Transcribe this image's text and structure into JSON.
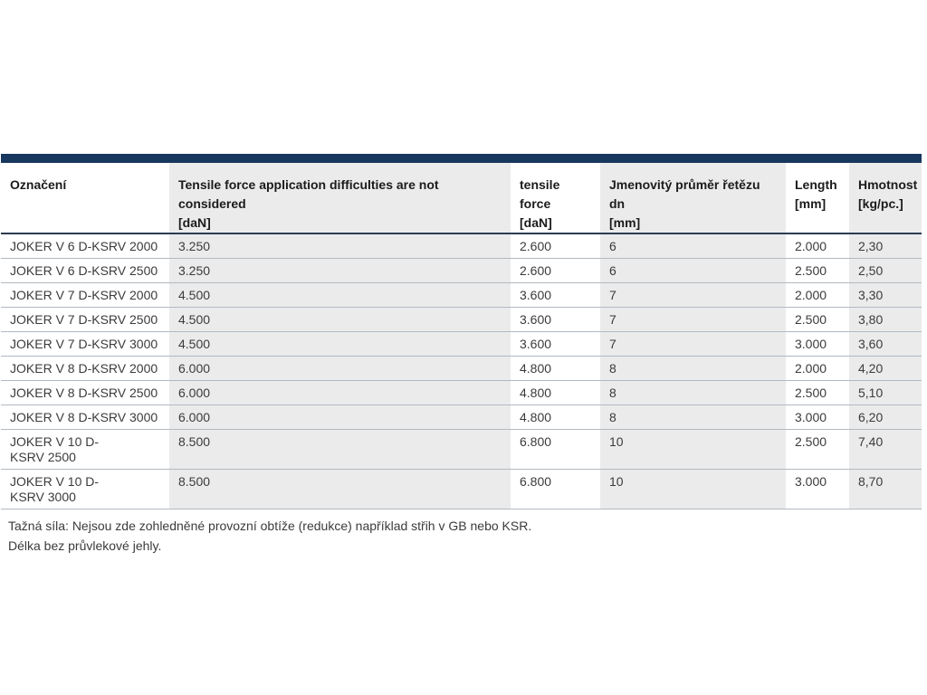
{
  "table": {
    "accent_color": "#17375e",
    "stripe_color": "#ebebeb",
    "border_color": "#b2b9c1",
    "columns": [
      {
        "label": "Označení"
      },
      {
        "label": "Tensile force application difficulties are not\nconsidered\n[daN]"
      },
      {
        "label": "tensile\nforce\n[daN]"
      },
      {
        "label": "Jmenovitý průměr řetězu\ndn\n[mm]"
      },
      {
        "label": "Length\n[mm]"
      },
      {
        "label": "Hmotnost\n[kg/pc.]"
      }
    ],
    "rows": [
      {
        "cells": [
          "JOKER V 6 D-KSRV 2000",
          "3.250",
          "2.600",
          "6",
          "2.000",
          "2,30"
        ]
      },
      {
        "cells": [
          "JOKER V 6 D-KSRV 2500",
          "3.250",
          "2.600",
          "6",
          "2.500",
          "2,50"
        ]
      },
      {
        "cells": [
          "JOKER V 7 D-KSRV 2000",
          "4.500",
          "3.600",
          "7",
          "2.000",
          "3,30"
        ]
      },
      {
        "cells": [
          "JOKER V 7 D-KSRV 2500",
          "4.500",
          "3.600",
          "7",
          "2.500",
          "3,80"
        ]
      },
      {
        "cells": [
          "JOKER V 7 D-KSRV 3000",
          "4.500",
          "3.600",
          "7",
          "3.000",
          "3,60"
        ]
      },
      {
        "cells": [
          "JOKER V 8 D-KSRV 2000",
          "6.000",
          "4.800",
          "8",
          "2.000",
          "4,20"
        ]
      },
      {
        "cells": [
          "JOKER V 8 D-KSRV 2500",
          "6.000",
          "4.800",
          "8",
          "2.500",
          "5,10"
        ]
      },
      {
        "cells": [
          "JOKER V 8 D-KSRV 3000",
          "6.000",
          "4.800",
          "8",
          "3.000",
          "6,20"
        ]
      },
      {
        "cells": [
          "JOKER V 10 D-\nKSRV 2500",
          "8.500",
          "6.800",
          "10",
          "2.500",
          "7,40"
        ]
      },
      {
        "cells": [
          "JOKER V 10 D-\nKSRV 3000",
          "8.500",
          "6.800",
          "10",
          "3.000",
          "8,70"
        ]
      }
    ]
  },
  "footnotes": [
    "Tažná síla: Nejsou zde zohledněné provozní obtíže (redukce) například střih v GB nebo KSR.",
    "Délka bez průvlekové jehly."
  ]
}
